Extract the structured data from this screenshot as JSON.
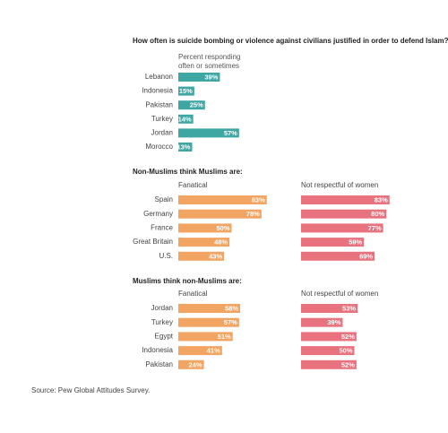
{
  "chart_data": [
    {
      "type": "bar",
      "orientation": "horizontal",
      "title": "How often is suicide bombing or violence against civilians justified in order to defend Islam?",
      "subtitle": "Percent responding often or sometimes",
      "categories": [
        "Lebanon",
        "Indonesia",
        "Pakistan",
        "Turkey",
        "Jordan",
        "Morocco"
      ],
      "values": [
        39,
        15,
        25,
        14,
        57,
        13
      ],
      "value_labels": [
        "39%",
        "15%",
        "25%",
        "14%",
        "57%",
        "13%"
      ],
      "color": "#3ea7a3"
    },
    {
      "type": "bar",
      "orientation": "horizontal",
      "title": "Non-Muslims think Muslims are:",
      "categories": [
        "Spain",
        "Germany",
        "France",
        "Great Britain",
        "U.S."
      ],
      "series": [
        {
          "name": "Fanatical",
          "color": "#f2a462",
          "values": [
            83,
            78,
            50,
            48,
            43
          ],
          "value_labels": [
            "83%",
            "78%",
            "50%",
            "48%",
            "43%"
          ]
        },
        {
          "name": "Not respectful of women",
          "color": "#e8737f",
          "values": [
            83,
            80,
            77,
            59,
            69
          ],
          "value_labels": [
            "83%",
            "80%",
            "77%",
            "59%",
            "69%"
          ]
        }
      ]
    },
    {
      "type": "bar",
      "orientation": "horizontal",
      "title": "Muslims think non-Muslims are:",
      "categories": [
        "Jordan",
        "Turkey",
        "Egypt",
        "Indonesia",
        "Pakistan"
      ],
      "series": [
        {
          "name": "Fanatical",
          "color": "#f2a462",
          "values": [
            58,
            57,
            51,
            41,
            24
          ],
          "value_labels": [
            "58%",
            "57%",
            "51%",
            "41%",
            "24%"
          ]
        },
        {
          "name": "Not respectful of women",
          "color": "#e8737f",
          "values": [
            53,
            39,
            52,
            50,
            52
          ],
          "value_labels": [
            "53%",
            "39%",
            "52%",
            "50%",
            "52%"
          ]
        }
      ]
    }
  ],
  "source": "Source: Pew Global Attitudes Survey."
}
